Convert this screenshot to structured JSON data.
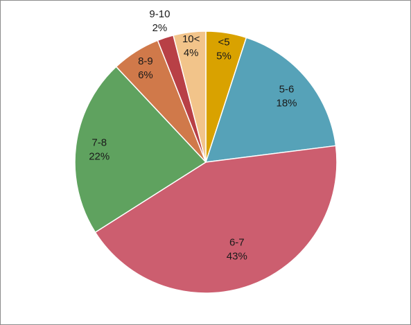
{
  "chart_data": {
    "type": "pie",
    "slices": [
      {
        "category": "<5",
        "percent_label": "5%",
        "value": 5,
        "color": "#d9a200"
      },
      {
        "category": "5-6",
        "percent_label": "18%",
        "value": 18,
        "color": "#56a2b8"
      },
      {
        "category": "6-7",
        "percent_label": "43%",
        "value": 43,
        "color": "#cc5e6f"
      },
      {
        "category": "7-8",
        "percent_label": "22%",
        "value": 22,
        "color": "#5fa25f"
      },
      {
        "category": "8-9",
        "percent_label": "6%",
        "value": 6,
        "color": "#d0794a"
      },
      {
        "category": "9-10",
        "percent_label": "2%",
        "value": 2,
        "color": "#b84046"
      },
      {
        "category": "10<",
        "percent_label": "4%",
        "value": 4,
        "color": "#f2c48a"
      }
    ],
    "start_angle": "top",
    "direction": "clockwise",
    "legend": "none",
    "title": ""
  }
}
